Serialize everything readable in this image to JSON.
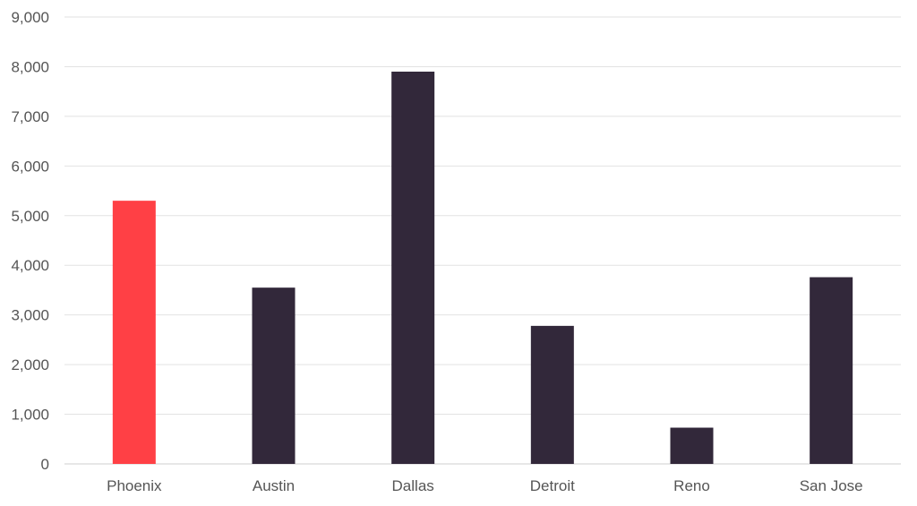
{
  "chart_data": {
    "type": "bar",
    "categories": [
      "Phoenix",
      "Austin",
      "Dallas",
      "Detroit",
      "Reno",
      "San Jose"
    ],
    "values": [
      5300,
      3550,
      7900,
      2780,
      730,
      3760
    ],
    "highlight_index": 0,
    "ylim": [
      0,
      9000
    ],
    "yticks": [
      0,
      1000,
      2000,
      3000,
      4000,
      5000,
      6000,
      7000,
      8000,
      9000
    ],
    "ytick_labels": [
      "0",
      "1,000",
      "2,000",
      "3,000",
      "4,000",
      "5,000",
      "6,000",
      "7,000",
      "8,000",
      "9,000"
    ],
    "title": "",
    "xlabel": "",
    "ylabel": "",
    "grid": true,
    "legend": "none",
    "colors": {
      "highlight": "#ff4045",
      "default": "#32283a"
    }
  }
}
